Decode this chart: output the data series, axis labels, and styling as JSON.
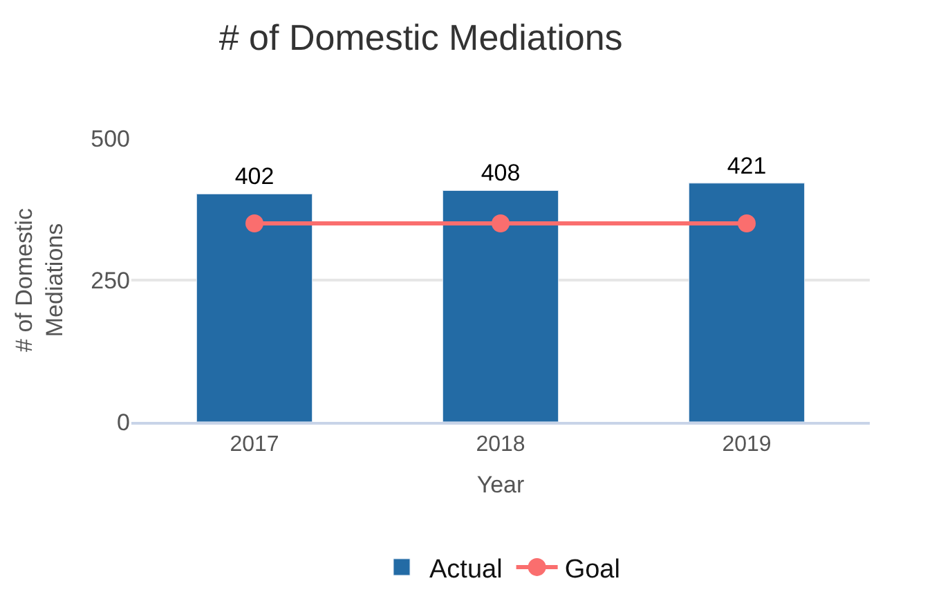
{
  "chart_data": {
    "type": "bar",
    "title": "# of Domestic Mediations",
    "xlabel": "Year",
    "ylabel": "# of Domestic\nMediations",
    "categories": [
      "2017",
      "2018",
      "2019"
    ],
    "series": [
      {
        "name": "Actual",
        "color": "#236ba5",
        "values": [
          402,
          408,
          421
        ],
        "value_labels": [
          "402",
          "408",
          "421"
        ]
      },
      {
        "name": "Goal",
        "type": "line",
        "color": "#fa6e6e",
        "values": [
          350,
          350,
          350
        ],
        "marker": "circle",
        "line_style": "solid"
      }
    ],
    "ylim": [
      0,
      500
    ],
    "yticks": [
      0,
      250,
      500
    ],
    "grid": "y",
    "legend": "bottom"
  }
}
